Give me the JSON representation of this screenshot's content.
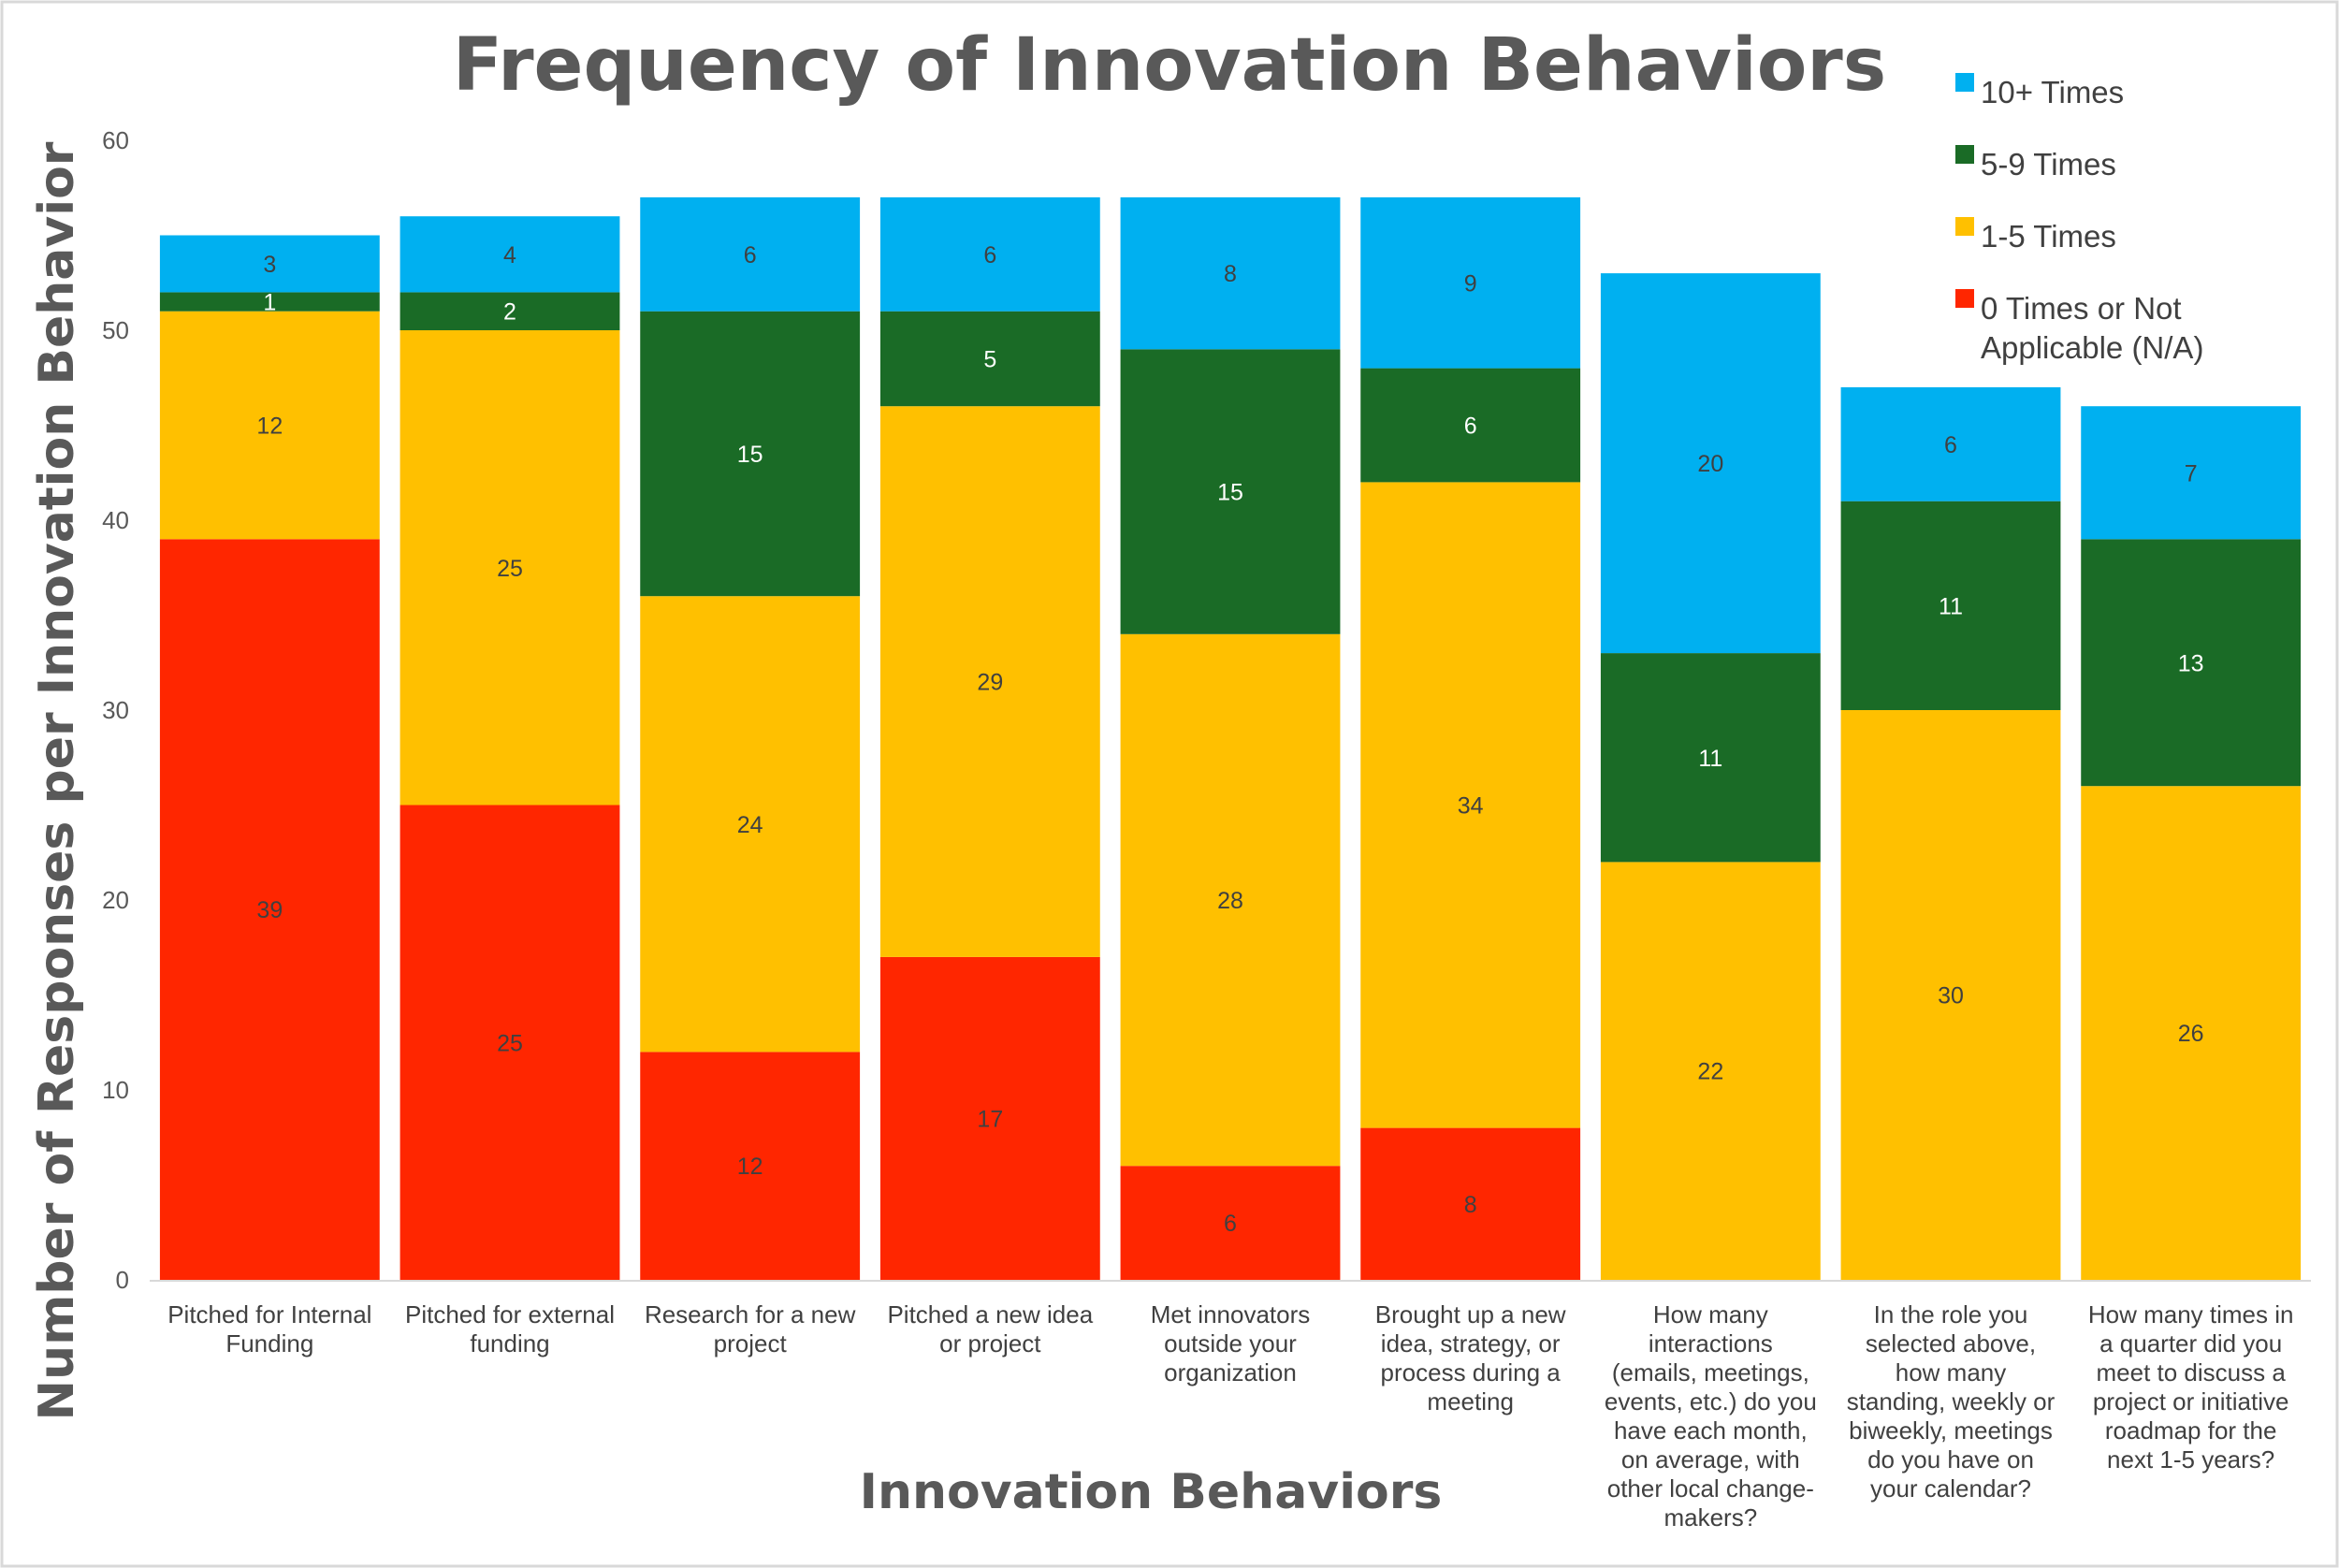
{
  "chart_data": {
    "type": "bar",
    "stacked": true,
    "title": "Frequency of Innovation Behaviors",
    "xlabel": "Innovation Behaviors",
    "ylabel": "Number of Responses per Innovation Behavior",
    "ylim": [
      0,
      60
    ],
    "yticks": [
      0,
      10,
      20,
      30,
      40,
      50,
      60
    ],
    "categories": [
      "Pitched for Internal Funding",
      "Pitched for external funding",
      "Research for a new project",
      "Pitched a new idea or project",
      "Met innovators outside your organization",
      "Brought up a new idea, strategy, or process during a meeting",
      "How many interactions (emails, meetings, events, etc.) do you have each month, on average, with other local change-makers?",
      "In the role you selected above, how many standing, weekly or biweekly, meetings do you have on your calendar?",
      "How many times in a quarter did you meet to discuss a project or initiative roadmap for the next 1-5 years?"
    ],
    "category_lines": [
      [
        "Pitched for Internal",
        "Funding"
      ],
      [
        "Pitched for external",
        "funding"
      ],
      [
        "Research for a new",
        "project"
      ],
      [
        "Pitched a new idea",
        "or project"
      ],
      [
        "Met innovators",
        "outside your",
        "organization"
      ],
      [
        "Brought up a new",
        "idea, strategy, or",
        "process during a",
        "meeting"
      ],
      [
        "How many",
        "interactions",
        "(emails, meetings,",
        "events, etc.) do you",
        "have each month,",
        "on average, with",
        "other local change-",
        "makers?"
      ],
      [
        "In the role you",
        "selected above,",
        "how many",
        "standing, weekly or",
        "biweekly, meetings",
        "do you have on",
        "your calendar?"
      ],
      [
        "How many times in",
        "a quarter did you",
        "meet to discuss a",
        "project or initiative",
        "roadmap for the",
        "next 1-5 years?"
      ]
    ],
    "series": [
      {
        "name": "0 Times or Not Applicable (N/A)",
        "legend_lines": [
          "0 Times or Not",
          "Applicable (N/A)"
        ],
        "color": "#FF2600",
        "label_light": false,
        "values": [
          39,
          25,
          12,
          17,
          6,
          8,
          null,
          null,
          null
        ]
      },
      {
        "name": "1-5 Times",
        "legend_lines": [
          "1-5 Times"
        ],
        "color": "#FFC000",
        "label_light": false,
        "values": [
          12,
          25,
          24,
          29,
          28,
          34,
          22,
          30,
          26
        ]
      },
      {
        "name": "5-9 Times",
        "legend_lines": [
          "5-9 Times"
        ],
        "color": "#1A6B26",
        "label_light": true,
        "values": [
          1,
          2,
          15,
          5,
          15,
          6,
          11,
          11,
          13
        ]
      },
      {
        "name": "10+ Times",
        "legend_lines": [
          "10+ Times"
        ],
        "color": "#00B0F0",
        "label_light": false,
        "values": [
          3,
          4,
          6,
          6,
          8,
          9,
          20,
          6,
          7
        ]
      }
    ],
    "legend_order": [
      3,
      2,
      1,
      0
    ],
    "legend_position": "top-right",
    "grid": false
  }
}
